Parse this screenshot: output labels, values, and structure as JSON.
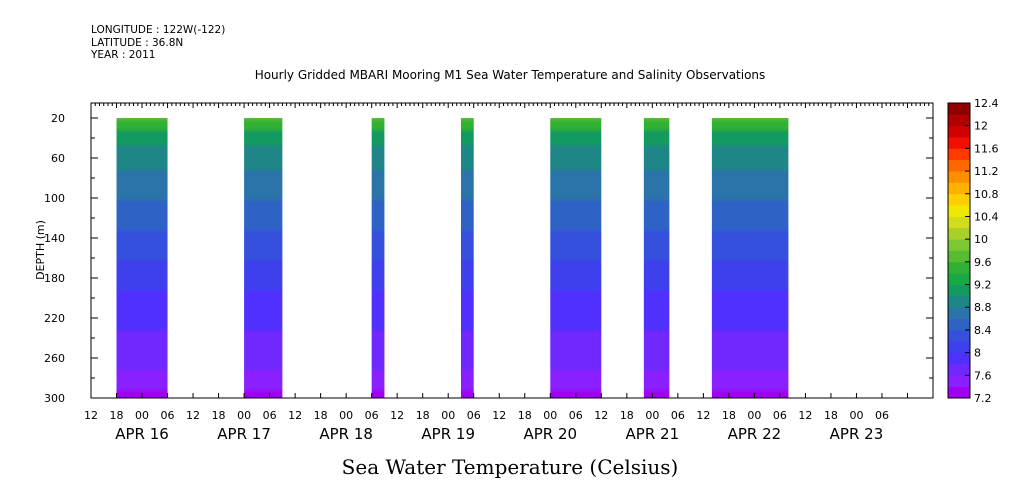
{
  "meta": {
    "longitude": "LONGITUDE : 122W(-122)",
    "latitude": "LATITUDE : 36.8N",
    "year": "YEAR : 2011"
  },
  "chart_data": {
    "type": "heatmap",
    "title": "Hourly Gridded MBARI Mooring M1 Sea Water Temperature and Salinity Observations",
    "xlabel": "Sea Water Temperature (Celsius)",
    "ylabel": "DEPTH (m)",
    "x_range_hours_start": "APR 15 2011 12:00",
    "hour_tick_labels": [
      "12",
      "18",
      "00",
      "06",
      "12",
      "18",
      "00",
      "06",
      "12",
      "18",
      "00",
      "06",
      "12",
      "18",
      "00",
      "06",
      "12",
      "18",
      "00",
      "06",
      "12",
      "18",
      "00",
      "06",
      "12",
      "18",
      "00",
      "06",
      "12",
      "18",
      "00",
      "06"
    ],
    "day_labels": [
      "APR 16",
      "APR 17",
      "APR 18",
      "APR 19",
      "APR 20",
      "APR 21",
      "APR 22",
      "APR 23"
    ],
    "yticks": [
      20,
      60,
      100,
      140,
      180,
      220,
      260,
      300
    ],
    "ylim": [
      300,
      5
    ],
    "colorbar": {
      "labels": [
        "12.4",
        "12",
        "11.6",
        "11.2",
        "10.8",
        "10.4",
        "10",
        "9.6",
        "9.2",
        "8.8",
        "8.4",
        "8",
        "7.6",
        "7.2"
      ],
      "levels": [
        7.2,
        7.4,
        7.6,
        7.8,
        8.0,
        8.2,
        8.4,
        8.6,
        8.8,
        9.0,
        9.2,
        9.4,
        9.6,
        9.8,
        10.0,
        10.2,
        10.4,
        10.6,
        10.8,
        11.0,
        11.2,
        11.4,
        11.6,
        11.8,
        12.0,
        12.2,
        12.4,
        12.6
      ],
      "colors": [
        "#a000f0",
        "#8a20ff",
        "#7028ff",
        "#5030ff",
        "#3e40ee",
        "#3450dd",
        "#2e62c4",
        "#2a74aa",
        "#1f8688",
        "#139a60",
        "#18a844",
        "#30b034",
        "#58bc32",
        "#7cc832",
        "#a8d028",
        "#d0dc1c",
        "#f0e800",
        "#ffd000",
        "#ffb000",
        "#ff8e00",
        "#ff6800",
        "#ff3a00",
        "#f01000",
        "#d00000",
        "#b00000",
        "#900000"
      ]
    },
    "segments": [
      {
        "start": "APR 15 18:00",
        "end": "APR 16 06:00"
      },
      {
        "start": "APR 17 00:00",
        "end": "APR 17 09:00"
      },
      {
        "start": "APR 18 06:00",
        "end": "APR 18 09:00"
      },
      {
        "start": "APR 19 03:00",
        "end": "APR 19 06:00"
      },
      {
        "start": "APR 20 00:00",
        "end": "APR 20 12:00"
      },
      {
        "start": "APR 20 22:00",
        "end": "APR 21 04:00"
      },
      {
        "start": "APR 21 14:00",
        "end": "APR 22 08:00"
      }
    ]
  }
}
